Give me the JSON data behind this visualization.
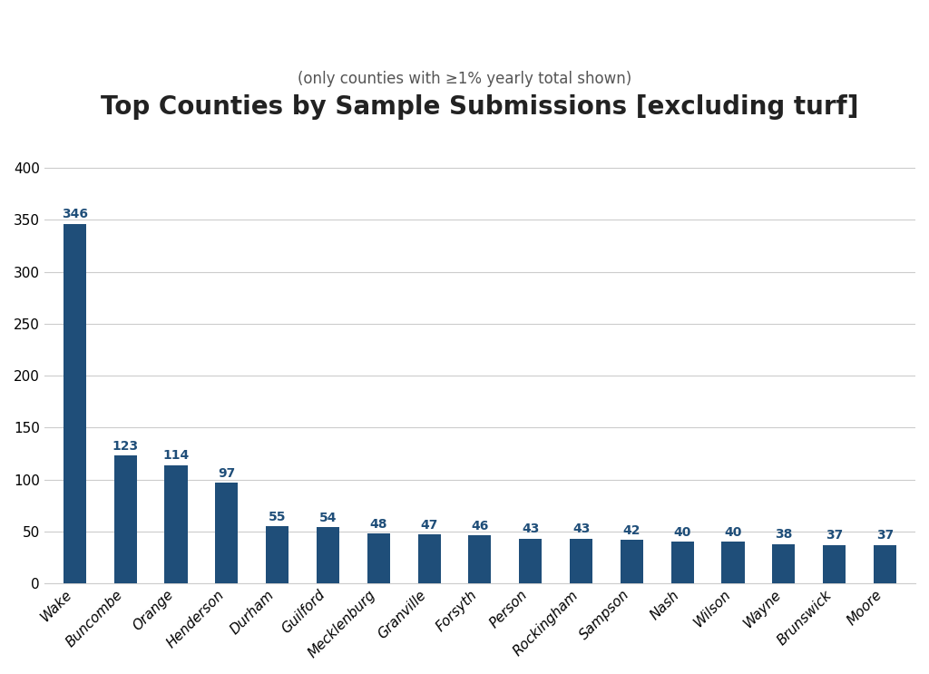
{
  "categories": [
    "Wake",
    "Buncombe",
    "Orange",
    "Henderson",
    "Durham",
    "Guilford",
    "Mecklenburg",
    "Granville",
    "Forsyth",
    "Person",
    "Rockingham",
    "Sampson",
    "Nash",
    "Wilson",
    "Wayne",
    "Brunswick",
    "Moore"
  ],
  "values": [
    346,
    123,
    114,
    97,
    55,
    54,
    48,
    47,
    46,
    43,
    43,
    42,
    40,
    40,
    38,
    37,
    37
  ],
  "bar_color": "#1F4E79",
  "title": "Top Counties by Sample Submissions [excluding turf]",
  "subtitle": "(only counties with ≥1% yearly total shown)",
  "ylim": [
    0,
    415
  ],
  "yticks": [
    0,
    50,
    100,
    150,
    200,
    250,
    300,
    350,
    400
  ],
  "title_fontsize": 20,
  "subtitle_fontsize": 12,
  "tick_label_fontsize": 11,
  "background_color": "#ffffff",
  "grid_color": "#cccccc",
  "value_label_color": "#1F4E79",
  "value_label_fontsize": 10,
  "bar_width": 0.45
}
